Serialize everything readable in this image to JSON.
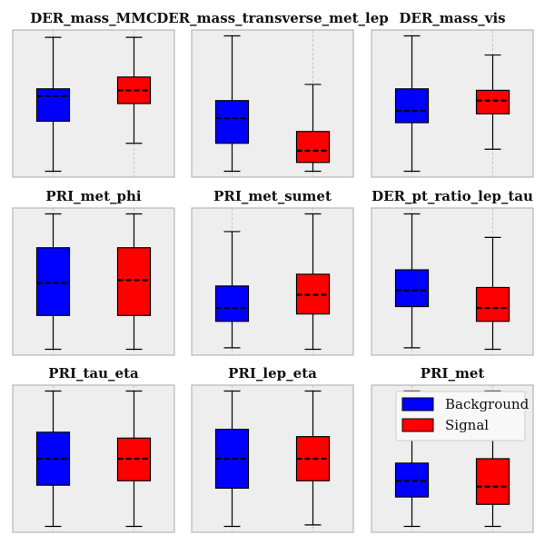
{
  "legend": {
    "entries": [
      {
        "label": "Background",
        "color": "#0000ff"
      },
      {
        "label": "Signal",
        "color": "#ff0000"
      }
    ],
    "placement": "top-right of last panel"
  },
  "style": {
    "panel_background": "#eeeeee",
    "frame_color": "#aaaaaa",
    "grid_color": "#bbbbbb",
    "median_style": "dashed black"
  },
  "chart_data": [
    {
      "type": "box",
      "title": "DER_mass_MMC",
      "categories": [
        "Background",
        "Signal"
      ],
      "ylim": [
        0,
        100
      ],
      "grid": "x-dashed",
      "axis_ticks_visible": false,
      "series": [
        {
          "name": "Background",
          "color": "#0000ff",
          "whislo": 4,
          "q1": 38,
          "median": 55,
          "q3": 60,
          "whishi": 95
        },
        {
          "name": "Signal",
          "color": "#ff0000",
          "whislo": 23,
          "q1": 50,
          "median": 59,
          "q3": 68,
          "whishi": 95
        }
      ]
    },
    {
      "type": "box",
      "title": "DER_mass_transverse_met_lep",
      "categories": [
        "Background",
        "Signal"
      ],
      "ylim": [
        0,
        100
      ],
      "grid": "x-dashed",
      "axis_ticks_visible": false,
      "series": [
        {
          "name": "Background",
          "color": "#0000ff",
          "whislo": 4,
          "q1": 23,
          "median": 40,
          "q3": 52,
          "whishi": 96
        },
        {
          "name": "Signal",
          "color": "#ff0000",
          "whislo": 4,
          "q1": 10,
          "median": 18,
          "q3": 31,
          "whishi": 63
        }
      ]
    },
    {
      "type": "box",
      "title": "DER_mass_vis",
      "categories": [
        "Background",
        "Signal"
      ],
      "ylim": [
        0,
        100
      ],
      "grid": "x-dashed",
      "axis_ticks_visible": false,
      "series": [
        {
          "name": "Background",
          "color": "#0000ff",
          "whislo": 4,
          "q1": 37,
          "median": 45,
          "q3": 60,
          "whishi": 96
        },
        {
          "name": "Signal",
          "color": "#ff0000",
          "whislo": 19,
          "q1": 43,
          "median": 52,
          "q3": 59,
          "whishi": 83
        }
      ]
    },
    {
      "type": "box",
      "title": "PRI_met_phi",
      "categories": [
        "Background",
        "Signal"
      ],
      "ylim": [
        0,
        100
      ],
      "grid": "x-dashed",
      "axis_ticks_visible": false,
      "series": [
        {
          "name": "Background",
          "color": "#0000ff",
          "whislo": 4,
          "q1": 27,
          "median": 49,
          "q3": 73,
          "whishi": 96
        },
        {
          "name": "Signal",
          "color": "#ff0000",
          "whislo": 4,
          "q1": 27,
          "median": 51,
          "q3": 73,
          "whishi": 96
        }
      ]
    },
    {
      "type": "box",
      "title": "PRI_met_sumet",
      "categories": [
        "Background",
        "Signal"
      ],
      "ylim": [
        0,
        100
      ],
      "grid": "x-dashed",
      "axis_ticks_visible": false,
      "series": [
        {
          "name": "Background",
          "color": "#0000ff",
          "whislo": 5,
          "q1": 23,
          "median": 32,
          "q3": 47,
          "whishi": 84
        },
        {
          "name": "Signal",
          "color": "#ff0000",
          "whislo": 4,
          "q1": 28,
          "median": 41,
          "q3": 55,
          "whishi": 96
        }
      ]
    },
    {
      "type": "box",
      "title": "DER_pt_ratio_lep_tau",
      "categories": [
        "Background",
        "Signal"
      ],
      "ylim": [
        0,
        100
      ],
      "grid": "x-dashed",
      "axis_ticks_visible": false,
      "series": [
        {
          "name": "Background",
          "color": "#0000ff",
          "whislo": 5,
          "q1": 33,
          "median": 44,
          "q3": 58,
          "whishi": 96
        },
        {
          "name": "Signal",
          "color": "#ff0000",
          "whislo": 4,
          "q1": 23,
          "median": 32,
          "q3": 46,
          "whishi": 80
        }
      ]
    },
    {
      "type": "box",
      "title": "PRI_tau_eta",
      "categories": [
        "Background",
        "Signal"
      ],
      "ylim": [
        0,
        100
      ],
      "grid": "x-dashed",
      "axis_ticks_visible": false,
      "series": [
        {
          "name": "Background",
          "color": "#0000ff",
          "whislo": 4,
          "q1": 32,
          "median": 50,
          "q3": 68,
          "whishi": 96
        },
        {
          "name": "Signal",
          "color": "#ff0000",
          "whislo": 4,
          "q1": 35,
          "median": 50,
          "q3": 64,
          "whishi": 96
        }
      ]
    },
    {
      "type": "box",
      "title": "PRI_lep_eta",
      "categories": [
        "Background",
        "Signal"
      ],
      "ylim": [
        0,
        100
      ],
      "grid": "x-dashed",
      "axis_ticks_visible": false,
      "series": [
        {
          "name": "Background",
          "color": "#0000ff",
          "whislo": 4,
          "q1": 30,
          "median": 50,
          "q3": 70,
          "whishi": 96
        },
        {
          "name": "Signal",
          "color": "#ff0000",
          "whislo": 5,
          "q1": 35,
          "median": 50,
          "q3": 65,
          "whishi": 96
        }
      ]
    },
    {
      "type": "box",
      "title": "PRI_met",
      "categories": [
        "Background",
        "Signal"
      ],
      "ylim": [
        0,
        100
      ],
      "grid": "x-dashed",
      "axis_ticks_visible": false,
      "series": [
        {
          "name": "Background",
          "color": "#0000ff",
          "whislo": 4,
          "q1": 24,
          "median": 35,
          "q3": 47,
          "whishi": 96
        },
        {
          "name": "Signal",
          "color": "#ff0000",
          "whislo": 4,
          "q1": 19,
          "median": 31,
          "q3": 50,
          "whishi": 96
        }
      ]
    }
  ]
}
